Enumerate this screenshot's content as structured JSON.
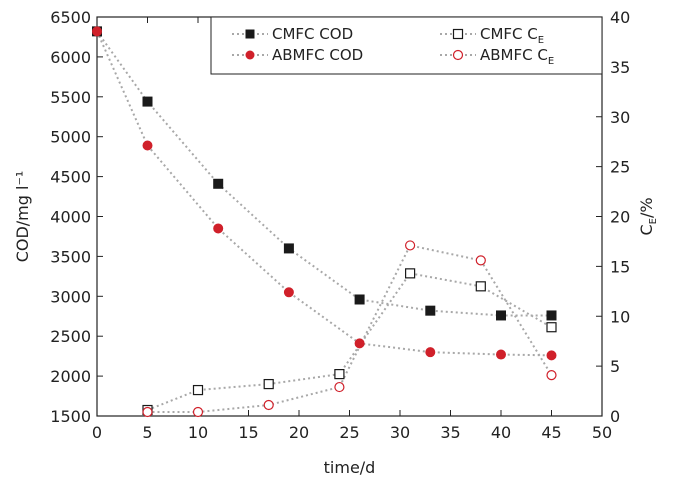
{
  "chart_data": {
    "type": "line",
    "xlabel": "time/d",
    "ylabel_left": "COD/mg l⁻¹",
    "ylabel_right_main": "C",
    "ylabel_right_sub": "E",
    "ylabel_right_suffix": "/%",
    "xlim": [
      0,
      50
    ],
    "ylim_left": [
      1500,
      6500
    ],
    "ylim_right": [
      0,
      40
    ],
    "x_ticks": [
      0,
      5,
      10,
      15,
      20,
      25,
      30,
      35,
      40,
      45,
      50
    ],
    "y_left_ticks": [
      1500,
      2000,
      2500,
      3000,
      3500,
      4000,
      4500,
      5000,
      5500,
      6000,
      6500
    ],
    "y_right_ticks": [
      0,
      5,
      10,
      15,
      20,
      25,
      30,
      35,
      40
    ],
    "grid": false,
    "legend_position": "top-right",
    "series": [
      {
        "name": "CMFC COD",
        "axis": "left",
        "marker": "square-filled",
        "color": "#1a1a1a",
        "x": [
          0,
          5,
          12,
          19,
          26,
          33,
          40,
          45
        ],
        "y": [
          6320,
          5440,
          4410,
          3600,
          2960,
          2820,
          2760,
          2760
        ]
      },
      {
        "name": "ABMFC COD",
        "axis": "left",
        "marker": "circle-filled",
        "color": "#d0202a",
        "x": [
          0,
          5,
          12,
          19,
          26,
          33,
          40,
          45
        ],
        "y": [
          6320,
          4890,
          3850,
          3050,
          2410,
          2300,
          2270,
          2260
        ]
      },
      {
        "name": "CMFC CE",
        "label_main": "CMFC C",
        "label_sub": "E",
        "axis": "right",
        "marker": "square-open",
        "color": "#1a1a1a",
        "x": [
          5,
          10,
          17,
          24,
          31,
          38,
          45
        ],
        "y": [
          0.6,
          2.6,
          3.2,
          4.2,
          14.3,
          13.0,
          8.9
        ]
      },
      {
        "name": "ABMFC CE",
        "label_main": "ABMFC C",
        "label_sub": "E",
        "axis": "right",
        "marker": "circle-open",
        "color": "#d0202a",
        "x": [
          5,
          10,
          17,
          24,
          31,
          38,
          45
        ],
        "y": [
          0.4,
          0.4,
          1.1,
          2.9,
          17.1,
          15.6,
          4.1
        ]
      }
    ],
    "line_color": "#a8a8a8"
  }
}
